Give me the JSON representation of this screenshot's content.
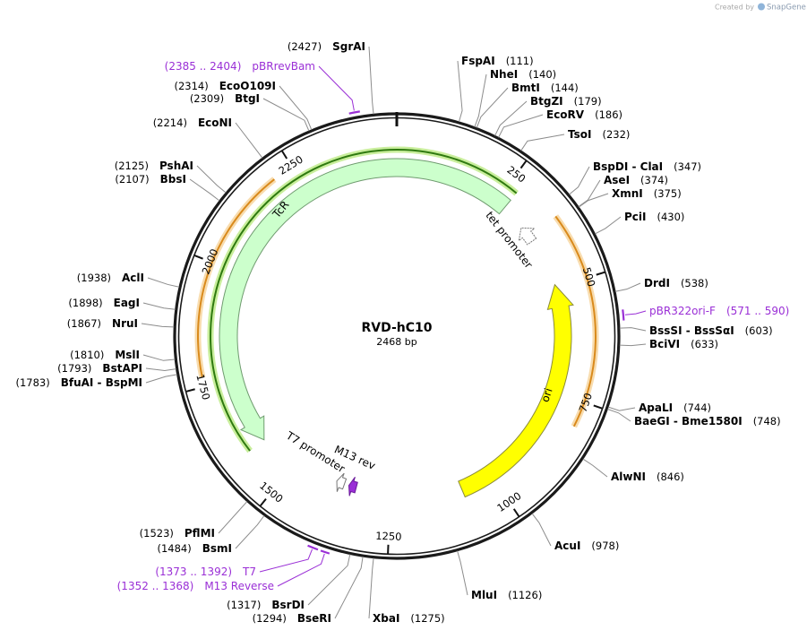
{
  "header": {
    "credit": "Created by",
    "brand": "SnapGene"
  },
  "plasmid": {
    "name": "RVD-hC10",
    "length": "2468 bp"
  },
  "ticks": [
    "250",
    "500",
    "750",
    "1000",
    "1250",
    "1500",
    "1750",
    "2000",
    "2250"
  ],
  "enzymes": [
    {
      "name": "FspAI",
      "site": "(111)"
    },
    {
      "name": "NheI",
      "site": "(140)"
    },
    {
      "name": "BmtI",
      "site": "(144)"
    },
    {
      "name": "BtgZI",
      "site": "(179)"
    },
    {
      "name": "EcoRV",
      "site": "(186)"
    },
    {
      "name": "TsoI",
      "site": "(232)"
    },
    {
      "name": "BspDI - ClaI",
      "site": "(347)"
    },
    {
      "name": "AseI",
      "site": "(374)"
    },
    {
      "name": "XmnI",
      "site": "(375)"
    },
    {
      "name": "PciI",
      "site": "(430)"
    },
    {
      "name": "DrdI",
      "site": "(538)"
    },
    {
      "name": "BssSI - BssSαI",
      "site": "(603)"
    },
    {
      "name": "BciVI",
      "site": "(633)"
    },
    {
      "name": "ApaLI",
      "site": "(744)"
    },
    {
      "name": "BaeGI - Bme1580I",
      "site": "(748)"
    },
    {
      "name": "AlwNI",
      "site": "(846)"
    },
    {
      "name": "AcuI",
      "site": "(978)"
    },
    {
      "name": "MluI",
      "site": "(1126)"
    },
    {
      "name": "XbaI",
      "site": "(1275)"
    },
    {
      "name": "BseRI",
      "site": "(1294)"
    },
    {
      "name": "BsrDI",
      "site": "(1317)"
    },
    {
      "name": "BsmI",
      "site": "(1484)"
    },
    {
      "name": "PflMI",
      "site": "(1523)"
    },
    {
      "name": "BfuAI - BspMI",
      "site": "(1783)"
    },
    {
      "name": "BstAPI",
      "site": "(1793)"
    },
    {
      "name": "MslI",
      "site": "(1810)"
    },
    {
      "name": "NruI",
      "site": "(1867)"
    },
    {
      "name": "EagI",
      "site": "(1898)"
    },
    {
      "name": "AclI",
      "site": "(1938)"
    },
    {
      "name": "BbsI",
      "site": "(2107)"
    },
    {
      "name": "PshAI",
      "site": "(2125)"
    },
    {
      "name": "EcoNI",
      "site": "(2214)"
    },
    {
      "name": "BtgI",
      "site": "(2309)"
    },
    {
      "name": "EcoO109I",
      "site": "(2314)"
    },
    {
      "name": "SgrAI",
      "site": "(2427)"
    }
  ],
  "features": [
    {
      "name": "pBRrevBam",
      "site": "(2385 .. 2404)"
    },
    {
      "name": "pBR322ori-F",
      "site": "(571 .. 590)"
    },
    {
      "name": "T7",
      "site": "(1373 .. 1392)"
    },
    {
      "name": "M13 Reverse",
      "site": "(1352 .. 1368)"
    }
  ],
  "annotations": [
    {
      "label": "TcR"
    },
    {
      "label": "tet promoter"
    },
    {
      "label": "ori"
    },
    {
      "label": "T7 promoter"
    },
    {
      "label": "M13 rev"
    }
  ]
}
